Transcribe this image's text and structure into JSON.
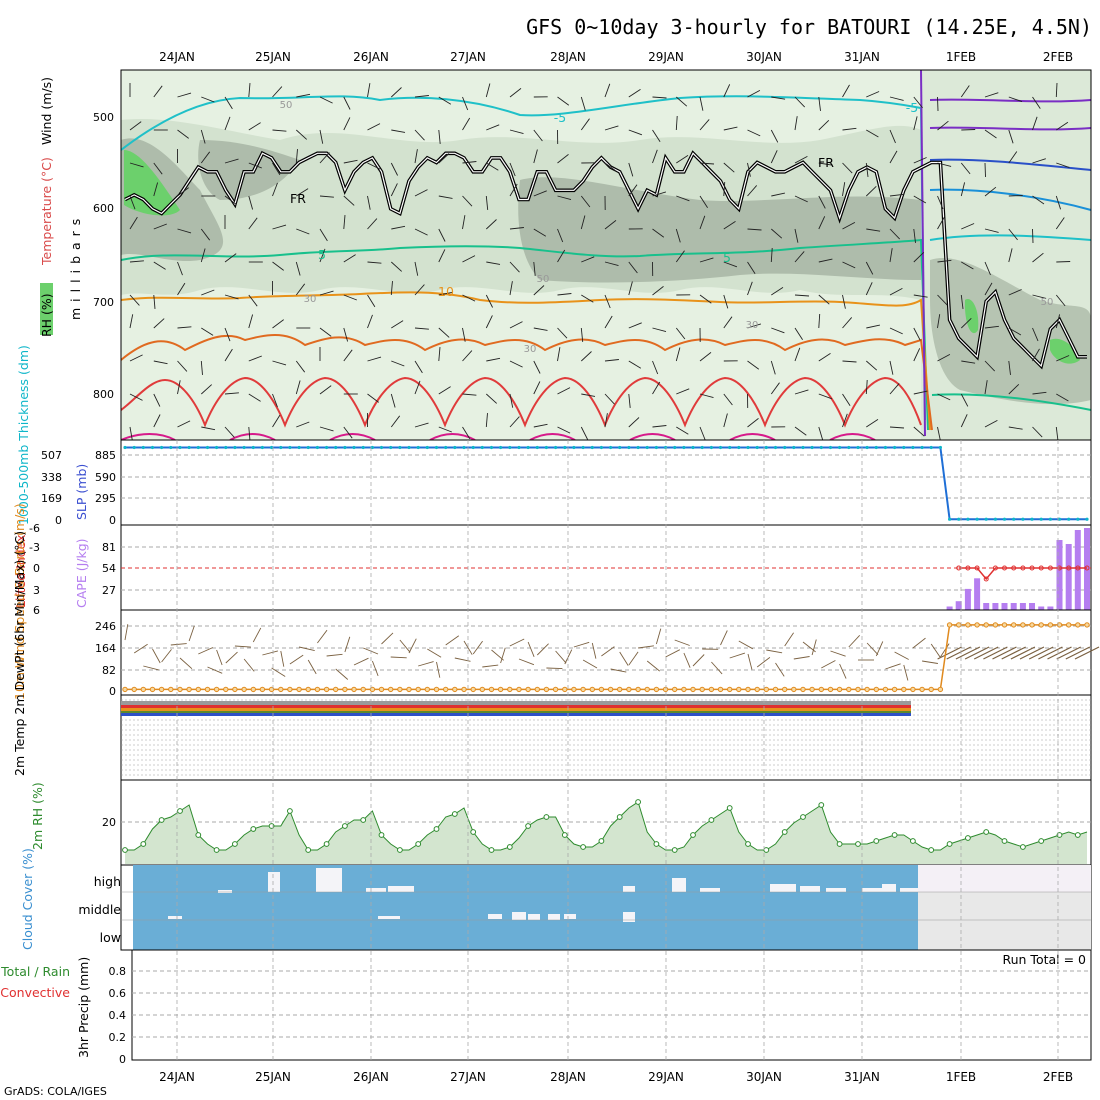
{
  "title": "GFS 0~10day 3-hourly for BATOURI (14.25E, 4.5N)",
  "footer": "GrADS: COLA/IGES",
  "run_total": "Run Total = 0",
  "dates": [
    "24JAN",
    "25JAN",
    "26JAN",
    "27JAN",
    "28JAN",
    "29JAN",
    "30JAN",
    "31JAN",
    "1FEB",
    "2FEB"
  ],
  "colors": {
    "rh_light": "#e8f3e4",
    "rh_mid": "#c9d9c5",
    "rh_dark": "#a9b8a6",
    "rh_green": "#6cd06c",
    "freezing": "#000000",
    "thickness": "#0fb6c9",
    "slp": "#1f6fd6",
    "cape": "#b57ef0",
    "lifted": "#e03030",
    "wind10": "#e08a1e",
    "barb": "#7a6040",
    "rh2m": "#2e8b2e",
    "cloud": "#6aaed6",
    "cloud_gap": "#e8e8e8"
  },
  "chart_data": [
    {
      "type": "line",
      "name": "upper_air",
      "ylabel": "millibars",
      "side_labels": {
        "rh": "RH (%)",
        "temperature": "Temperature (°C)",
        "wind": "Wind (m/s)"
      },
      "y_ticks": [
        500,
        600,
        700,
        800
      ],
      "ylim": [
        850,
        450
      ],
      "contour_labels": [
        "-5",
        "-5",
        "5",
        "5",
        "10",
        "FR",
        "FR",
        "50",
        "50",
        "50",
        "30",
        "30",
        "30"
      ],
      "freezing_level_mb": [
        590,
        585,
        590,
        600,
        605,
        595,
        585,
        570,
        555,
        560,
        560,
        580,
        595,
        560,
        560,
        540,
        545,
        560,
        560,
        550,
        545,
        540,
        540,
        550,
        580,
        560,
        550,
        545,
        560,
        600,
        605,
        570,
        555,
        545,
        550,
        540,
        540,
        545,
        560,
        560,
        545,
        545,
        560,
        590,
        590,
        560,
        560,
        580,
        580,
        580,
        570,
        555,
        545,
        555,
        560,
        580,
        600,
        580,
        585,
        545,
        560,
        560,
        540,
        550,
        560,
        570,
        590,
        600,
        560,
        550,
        555,
        560,
        560,
        555,
        550,
        560,
        570,
        580,
        610,
        580,
        560,
        555,
        560,
        600,
        610,
        580,
        560,
        555,
        550,
        550,
        720,
        740,
        750,
        760,
        700,
        690,
        720,
        740,
        750,
        760,
        770,
        730,
        720,
        740,
        760,
        760
      ]
    },
    {
      "type": "line",
      "name": "thickness_slp",
      "ylabel_left": "1000-500mb Thickness (dm)",
      "ylabel_right": "SLP (mb)",
      "left_ticks": [
        "507",
        "338",
        "169",
        "0"
      ],
      "right_ticks": [
        "885",
        "590",
        "295",
        "0"
      ],
      "series": [
        {
          "name": "SLP",
          "values": [
            930,
            930,
            930,
            930,
            930,
            930,
            930,
            930,
            930,
            930,
            930,
            930,
            930,
            930,
            930,
            930,
            930,
            930,
            930,
            930,
            930,
            930,
            930,
            930,
            930,
            930,
            930,
            930,
            930,
            930,
            930,
            930,
            930,
            930,
            930,
            930,
            930,
            930,
            930,
            930,
            930,
            930,
            930,
            930,
            930,
            930,
            930,
            930,
            930,
            930,
            930,
            930,
            930,
            930,
            930,
            930,
            930,
            930,
            930,
            930,
            930,
            930,
            930,
            930,
            930,
            930,
            930,
            930,
            930,
            930,
            930,
            930,
            930,
            930,
            930,
            930,
            930,
            930,
            930,
            930,
            930,
            930,
            930,
            930,
            930,
            930,
            930,
            930,
            930,
            930,
            10,
            10,
            10,
            10,
            10,
            10,
            10,
            10,
            10,
            10,
            10,
            10,
            10,
            10,
            10,
            10
          ]
        }
      ]
    },
    {
      "type": "bar",
      "name": "stability",
      "ylabel_left": "Lifted Index",
      "ylabel_right": "CAPE (J/kg)",
      "left_ticks": [
        "-6",
        "-3",
        "0",
        "3",
        "6"
      ],
      "right_ticks": [
        "81",
        "54",
        "27"
      ],
      "cape_values": [
        0,
        0,
        0,
        0,
        0,
        0,
        0,
        0,
        0,
        0,
        0,
        0,
        0,
        0,
        0,
        0,
        0,
        0,
        0,
        0,
        0,
        0,
        0,
        0,
        0,
        0,
        0,
        0,
        0,
        0,
        0,
        0,
        0,
        0,
        0,
        0,
        0,
        0,
        0,
        0,
        0,
        0,
        0,
        0,
        0,
        0,
        0,
        0,
        0,
        0,
        0,
        0,
        0,
        0,
        0,
        0,
        0,
        0,
        0,
        0,
        0,
        0,
        0,
        0,
        0,
        0,
        0,
        0,
        0,
        0,
        0,
        0,
        0,
        0,
        0,
        0,
        0,
        0,
        0,
        0,
        0,
        0,
        0,
        0,
        0,
        0,
        0,
        0,
        0,
        0,
        2,
        5,
        12,
        18,
        4,
        4,
        4,
        4,
        4,
        4,
        2,
        2,
        2,
        2,
        2,
        2
      ],
      "lifted_index": [
        0,
        0,
        0,
        0,
        0,
        0,
        0,
        0,
        0,
        0,
        0,
        0,
        0,
        0,
        0,
        0,
        0,
        0,
        0,
        0,
        0,
        0,
        0,
        0,
        0,
        0,
        0,
        0,
        0,
        0,
        0,
        0,
        0,
        0,
        0,
        0,
        0,
        0,
        0,
        0,
        0,
        0,
        0,
        0,
        0,
        0,
        0,
        0,
        0,
        0,
        0,
        0,
        0,
        0,
        0,
        0,
        0,
        0,
        0,
        0,
        0,
        0,
        0,
        0,
        0,
        0,
        0,
        0,
        0,
        0,
        0,
        0,
        0,
        0,
        0,
        0,
        0,
        0,
        0,
        0,
        0,
        0,
        0,
        0,
        0,
        0,
        0,
        0,
        0,
        0,
        0,
        0,
        0,
        0,
        1,
        0,
        0,
        0,
        0,
        0,
        0,
        0,
        0,
        0,
        0,
        0
      ]
    },
    {
      "type": "line",
      "name": "wind10m",
      "ylabel": "10m Wind Speed & Barbs (m/s)",
      "y_ticks": [
        "246",
        "164",
        "82",
        "0"
      ],
      "ylim": [
        0,
        260
      ],
      "series": [
        {
          "name": "Speed",
          "values": [
            2,
            2,
            2,
            2,
            2,
            2,
            2,
            2,
            2,
            2,
            2,
            2,
            2,
            2,
            2,
            2,
            2,
            2,
            2,
            2,
            2,
            2,
            2,
            2,
            2,
            2,
            2,
            2,
            2,
            2,
            2,
            2,
            2,
            2,
            2,
            2,
            2,
            2,
            2,
            2,
            2,
            2,
            2,
            2,
            2,
            2,
            2,
            2,
            2,
            2,
            2,
            2,
            2,
            2,
            2,
            2,
            2,
            2,
            2,
            2,
            2,
            2,
            2,
            2,
            2,
            2,
            2,
            2,
            2,
            2,
            2,
            2,
            2,
            2,
            2,
            2,
            2,
            2,
            2,
            2,
            2,
            2,
            2,
            2,
            2,
            2,
            2,
            2,
            2,
            2,
            235,
            235,
            235,
            235,
            235,
            235,
            235,
            235,
            235,
            235,
            235,
            235,
            235,
            235,
            235,
            235
          ]
        }
      ]
    },
    {
      "type": "line",
      "name": "temperature2m",
      "ylabel": "2m Temp 2m DewPt (6hr Min/Max) (°C)"
    },
    {
      "type": "area",
      "name": "rh2m",
      "ylabel": "2m RH (%)",
      "y_ticks": [
        "20"
      ],
      "values": [
        8,
        8,
        12,
        22,
        28,
        30,
        34,
        38,
        18,
        12,
        8,
        8,
        12,
        18,
        22,
        24,
        24,
        24,
        34,
        18,
        8,
        8,
        12,
        20,
        24,
        28,
        28,
        34,
        18,
        12,
        8,
        8,
        12,
        18,
        22,
        30,
        32,
        36,
        20,
        12,
        8,
        8,
        10,
        16,
        24,
        28,
        30,
        30,
        18,
        12,
        10,
        10,
        14,
        24,
        30,
        36,
        40,
        20,
        12,
        8,
        8,
        10,
        18,
        24,
        28,
        32,
        36,
        20,
        12,
        8,
        8,
        12,
        20,
        26,
        30,
        34,
        38,
        20,
        12,
        12,
        12,
        12,
        14,
        16,
        18,
        18,
        14,
        10,
        8,
        8,
        12,
        14,
        16,
        18,
        20,
        18,
        14,
        12,
        10,
        12,
        14,
        16,
        18,
        20,
        18,
        20
      ]
    },
    {
      "type": "bar",
      "name": "cloud_cover",
      "ylabel": "Cloud Cover (%)",
      "levels": [
        "high",
        "middle",
        "low"
      ]
    },
    {
      "type": "bar",
      "name": "precip",
      "ylabel": "3hr Precip (mm)",
      "legend": [
        "Total / Rain",
        "Convective"
      ],
      "y_ticks": [
        "0.8",
        "0.6",
        "0.4",
        "0.2",
        "0"
      ],
      "ylim": [
        0,
        0.9
      ],
      "values": []
    }
  ]
}
